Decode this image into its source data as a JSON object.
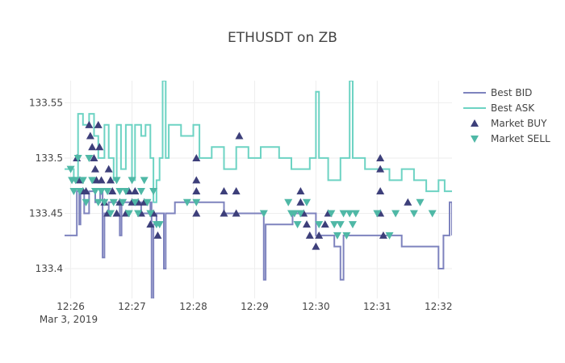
{
  "chart_data": {
    "type": "line",
    "title": "ETHUSDT on ZB",
    "xlabel": "",
    "ylabel": "",
    "x_tick_labels": [
      "12:26",
      "12:27",
      "12:28",
      "12:29",
      "12:30",
      "12:31",
      "12:32"
    ],
    "x_tick_values": [
      0,
      1,
      2,
      3,
      4,
      5,
      6
    ],
    "x_date_label": "Mar 3, 2019",
    "x_unit": "minutes after 12:26",
    "xlim": [
      -0.1,
      6.22
    ],
    "y_tick_labels": [
      "133.4",
      "133.45",
      "133.5",
      "133.55"
    ],
    "y_tick_values": [
      133.4,
      133.45,
      133.5,
      133.55
    ],
    "ylim": [
      133.373,
      133.57
    ],
    "grid": true,
    "legend": [
      "Best BID",
      "Best ASK",
      "Market BUY",
      "Market SELL"
    ],
    "legend_position": "top-right",
    "colors": {
      "bid": "#7e83be",
      "ask": "#6dd3c3",
      "buy": "#3d3f7a",
      "sell": "#4fb8a6",
      "grid": "#eeeeee",
      "text": "#444444"
    },
    "series": [
      {
        "name": "Best BID",
        "type": "step",
        "points": [
          [
            -0.1,
            133.43
          ],
          [
            0.08,
            133.43
          ],
          [
            0.1,
            133.47
          ],
          [
            0.14,
            133.44
          ],
          [
            0.16,
            133.47
          ],
          [
            0.22,
            133.45
          ],
          [
            0.3,
            133.47
          ],
          [
            0.4,
            133.46
          ],
          [
            0.48,
            133.47
          ],
          [
            0.52,
            133.41
          ],
          [
            0.55,
            133.45
          ],
          [
            0.62,
            133.46
          ],
          [
            0.78,
            133.46
          ],
          [
            0.8,
            133.43
          ],
          [
            0.83,
            133.46
          ],
          [
            1.1,
            133.46
          ],
          [
            1.15,
            133.45
          ],
          [
            1.3,
            133.46
          ],
          [
            1.32,
            133.37
          ],
          [
            1.35,
            133.44
          ],
          [
            1.4,
            133.45
          ],
          [
            1.5,
            133.45
          ],
          [
            1.52,
            133.4
          ],
          [
            1.55,
            133.45
          ],
          [
            1.7,
            133.46
          ],
          [
            2.5,
            133.45
          ],
          [
            3.1,
            133.45
          ],
          [
            3.15,
            133.39
          ],
          [
            3.18,
            133.44
          ],
          [
            3.6,
            133.44
          ],
          [
            3.62,
            133.45
          ],
          [
            4.0,
            133.43
          ],
          [
            4.3,
            133.42
          ],
          [
            4.4,
            133.39
          ],
          [
            4.45,
            133.43
          ],
          [
            4.8,
            133.43
          ],
          [
            5.0,
            133.43
          ],
          [
            5.3,
            133.43
          ],
          [
            5.4,
            133.42
          ],
          [
            5.8,
            133.42
          ],
          [
            6.0,
            133.4
          ],
          [
            6.05,
            133.4
          ],
          [
            6.08,
            133.43
          ],
          [
            6.15,
            133.43
          ],
          [
            6.18,
            133.46
          ],
          [
            6.22,
            133.43
          ]
        ]
      },
      {
        "name": "Best ASK",
        "type": "step",
        "points": [
          [
            -0.1,
            133.49
          ],
          [
            0.05,
            133.48
          ],
          [
            0.12,
            133.54
          ],
          [
            0.2,
            133.53
          ],
          [
            0.3,
            133.54
          ],
          [
            0.38,
            133.52
          ],
          [
            0.45,
            133.5
          ],
          [
            0.55,
            133.53
          ],
          [
            0.62,
            133.5
          ],
          [
            0.7,
            133.48
          ],
          [
            0.75,
            133.53
          ],
          [
            0.82,
            133.49
          ],
          [
            0.9,
            133.53
          ],
          [
            1.0,
            133.48
          ],
          [
            1.05,
            133.53
          ],
          [
            1.15,
            133.52
          ],
          [
            1.22,
            133.53
          ],
          [
            1.3,
            133.5
          ],
          [
            1.35,
            133.46
          ],
          [
            1.4,
            133.48
          ],
          [
            1.45,
            133.5
          ],
          [
            1.5,
            133.57
          ],
          [
            1.55,
            133.5
          ],
          [
            1.6,
            133.53
          ],
          [
            1.8,
            133.52
          ],
          [
            2.0,
            133.53
          ],
          [
            2.1,
            133.5
          ],
          [
            2.3,
            133.51
          ],
          [
            2.5,
            133.49
          ],
          [
            2.7,
            133.51
          ],
          [
            2.9,
            133.5
          ],
          [
            3.1,
            133.51
          ],
          [
            3.4,
            133.5
          ],
          [
            3.6,
            133.49
          ],
          [
            3.9,
            133.5
          ],
          [
            4.0,
            133.56
          ],
          [
            4.05,
            133.5
          ],
          [
            4.2,
            133.48
          ],
          [
            4.4,
            133.5
          ],
          [
            4.55,
            133.57
          ],
          [
            4.6,
            133.5
          ],
          [
            4.8,
            133.49
          ],
          [
            5.0,
            133.49
          ],
          [
            5.2,
            133.48
          ],
          [
            5.4,
            133.49
          ],
          [
            5.6,
            133.48
          ],
          [
            5.8,
            133.47
          ],
          [
            6.0,
            133.48
          ],
          [
            6.1,
            133.47
          ],
          [
            6.22,
            133.47
          ]
        ]
      },
      {
        "name": "Market BUY",
        "type": "markers",
        "points": [
          [
            0.1,
            133.5
          ],
          [
            0.15,
            133.48
          ],
          [
            0.2,
            133.47
          ],
          [
            0.25,
            133.47
          ],
          [
            0.3,
            133.53
          ],
          [
            0.32,
            133.52
          ],
          [
            0.35,
            133.51
          ],
          [
            0.38,
            133.5
          ],
          [
            0.4,
            133.49
          ],
          [
            0.42,
            133.48
          ],
          [
            0.45,
            133.53
          ],
          [
            0.47,
            133.51
          ],
          [
            0.5,
            133.48
          ],
          [
            0.55,
            133.46
          ],
          [
            0.6,
            133.45
          ],
          [
            0.62,
            133.49
          ],
          [
            0.65,
            133.48
          ],
          [
            0.68,
            133.47
          ],
          [
            0.75,
            133.45
          ],
          [
            0.8,
            133.46
          ],
          [
            0.9,
            133.45
          ],
          [
            0.95,
            133.47
          ],
          [
            1.0,
            133.46
          ],
          [
            1.05,
            133.47
          ],
          [
            1.1,
            133.46
          ],
          [
            1.15,
            133.45
          ],
          [
            1.2,
            133.46
          ],
          [
            1.3,
            133.44
          ],
          [
            1.35,
            133.45
          ],
          [
            1.42,
            133.43
          ],
          [
            2.05,
            133.5
          ],
          [
            2.05,
            133.48
          ],
          [
            2.05,
            133.47
          ],
          [
            2.05,
            133.45
          ],
          [
            2.5,
            133.47
          ],
          [
            2.5,
            133.45
          ],
          [
            2.7,
            133.47
          ],
          [
            2.7,
            133.45
          ],
          [
            2.75,
            133.52
          ],
          [
            3.75,
            133.47
          ],
          [
            3.75,
            133.46
          ],
          [
            3.8,
            133.45
          ],
          [
            3.85,
            133.44
          ],
          [
            3.9,
            133.43
          ],
          [
            4.0,
            133.42
          ],
          [
            4.05,
            133.43
          ],
          [
            4.15,
            133.44
          ],
          [
            4.2,
            133.45
          ],
          [
            5.05,
            133.5
          ],
          [
            5.05,
            133.49
          ],
          [
            5.05,
            133.47
          ],
          [
            5.05,
            133.45
          ],
          [
            5.1,
            133.43
          ],
          [
            5.5,
            133.46
          ]
        ]
      },
      {
        "name": "Market SELL",
        "type": "markers",
        "points": [
          [
            0.0,
            133.49
          ],
          [
            0.02,
            133.48
          ],
          [
            0.05,
            133.47
          ],
          [
            0.08,
            133.48
          ],
          [
            0.12,
            133.5
          ],
          [
            0.15,
            133.47
          ],
          [
            0.2,
            133.48
          ],
          [
            0.25,
            133.46
          ],
          [
            0.3,
            133.5
          ],
          [
            0.35,
            133.48
          ],
          [
            0.4,
            133.47
          ],
          [
            0.45,
            133.46
          ],
          [
            0.5,
            133.47
          ],
          [
            0.55,
            133.46
          ],
          [
            0.6,
            133.47
          ],
          [
            0.65,
            133.45
          ],
          [
            0.7,
            133.46
          ],
          [
            0.75,
            133.48
          ],
          [
            0.8,
            133.47
          ],
          [
            0.85,
            133.46
          ],
          [
            0.9,
            133.47
          ],
          [
            0.95,
            133.45
          ],
          [
            1.0,
            133.48
          ],
          [
            1.05,
            133.46
          ],
          [
            1.1,
            133.45
          ],
          [
            1.15,
            133.47
          ],
          [
            1.2,
            133.48
          ],
          [
            1.25,
            133.46
          ],
          [
            1.3,
            133.45
          ],
          [
            1.35,
            133.47
          ],
          [
            1.4,
            133.44
          ],
          [
            1.45,
            133.44
          ],
          [
            1.9,
            133.46
          ],
          [
            2.05,
            133.46
          ],
          [
            3.15,
            133.45
          ],
          [
            3.55,
            133.46
          ],
          [
            3.6,
            133.45
          ],
          [
            3.65,
            133.45
          ],
          [
            3.7,
            133.44
          ],
          [
            3.75,
            133.45
          ],
          [
            3.85,
            133.46
          ],
          [
            4.05,
            133.44
          ],
          [
            4.25,
            133.45
          ],
          [
            4.3,
            133.44
          ],
          [
            4.35,
            133.43
          ],
          [
            4.4,
            133.44
          ],
          [
            4.45,
            133.45
          ],
          [
            4.5,
            133.43
          ],
          [
            4.55,
            133.45
          ],
          [
            4.6,
            133.44
          ],
          [
            4.65,
            133.45
          ],
          [
            5.0,
            133.45
          ],
          [
            5.2,
            133.43
          ],
          [
            5.3,
            133.45
          ],
          [
            5.6,
            133.45
          ],
          [
            5.7,
            133.46
          ],
          [
            5.9,
            133.45
          ]
        ]
      }
    ]
  }
}
